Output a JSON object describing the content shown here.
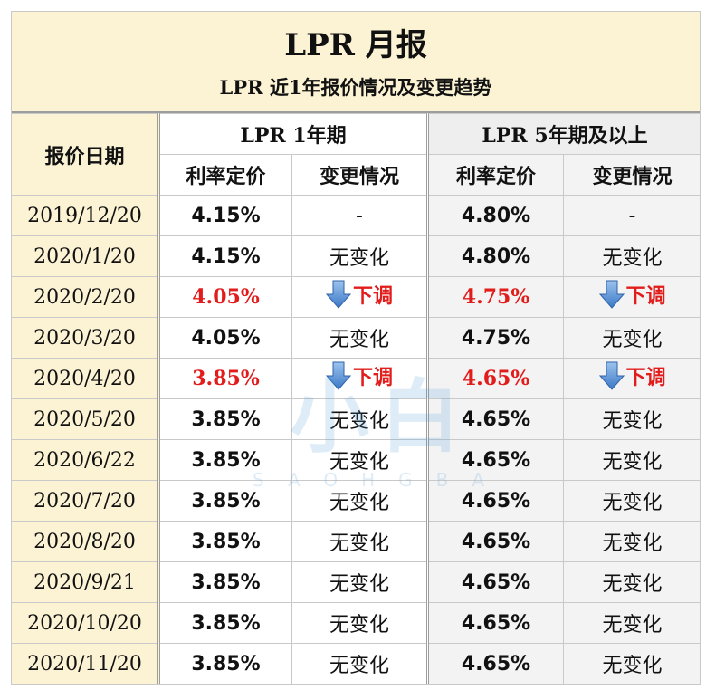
{
  "header": {
    "title": "LPR 月报",
    "subtitle": "LPR 近1年报价情况及变更趋势"
  },
  "columns": {
    "date": "报价日期",
    "group_1y": "LPR 1年期",
    "group_5y": "LPR 5年期及以上",
    "rate": "利率定价",
    "change": "变更情况"
  },
  "rows": [
    {
      "date": "2019/12/20",
      "r1": "4.15%",
      "c1": "-",
      "r5": "4.80%",
      "c5": "-",
      "down": false
    },
    {
      "date": "2020/1/20",
      "r1": "4.15%",
      "c1": "无变化",
      "r5": "4.80%",
      "c5": "无变化",
      "down": false
    },
    {
      "date": "2020/2/20",
      "r1": "4.05%",
      "c1": "下调",
      "r5": "4.75%",
      "c5": "下调",
      "down": true
    },
    {
      "date": "2020/3/20",
      "r1": "4.05%",
      "c1": "无变化",
      "r5": "4.75%",
      "c5": "无变化",
      "down": false
    },
    {
      "date": "2020/4/20",
      "r1": "3.85%",
      "c1": "下调",
      "r5": "4.65%",
      "c5": "下调",
      "down": true
    },
    {
      "date": "2020/5/20",
      "r1": "3.85%",
      "c1": "无变化",
      "r5": "4.65%",
      "c5": "无变化",
      "down": false
    },
    {
      "date": "2020/6/22",
      "r1": "3.85%",
      "c1": "无变化",
      "r5": "4.65%",
      "c5": "无变化",
      "down": false
    },
    {
      "date": "2020/7/20",
      "r1": "3.85%",
      "c1": "无变化",
      "r5": "4.65%",
      "c5": "无变化",
      "down": false
    },
    {
      "date": "2020/8/20",
      "r1": "3.85%",
      "c1": "无变化",
      "r5": "4.65%",
      "c5": "无变化",
      "down": false
    },
    {
      "date": "2020/9/21",
      "r1": "3.85%",
      "c1": "无变化",
      "r5": "4.65%",
      "c5": "无变化",
      "down": false
    },
    {
      "date": "2020/10/20",
      "r1": "3.85%",
      "c1": "无变化",
      "r5": "4.65%",
      "c5": "无变化",
      "down": false
    },
    {
      "date": "2020/11/20",
      "r1": "3.85%",
      "c1": "无变化",
      "r5": "4.65%",
      "c5": "无变化",
      "down": false
    }
  ],
  "watermark": {
    "text": "小白",
    "sub": "SAOHGBA"
  },
  "colors": {
    "accent_red": "#e21b1b",
    "header_cream": "#fcf3d5",
    "arrow_blue": "#3b78c7"
  },
  "icons": {
    "down_arrow": "down-arrow-icon"
  }
}
